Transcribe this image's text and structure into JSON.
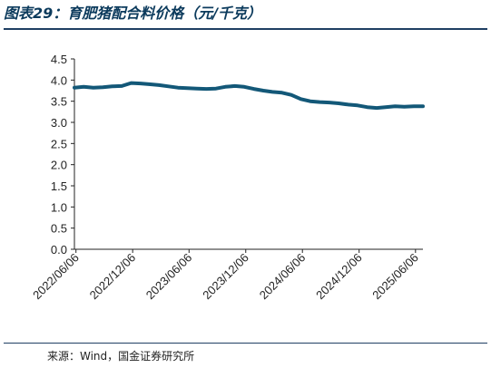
{
  "title": "图表29：育肥猪配合料价格（元/千克）",
  "source": "来源：Wind，国金证券研究所",
  "chart_data": {
    "type": "line",
    "title": "图表29：育肥猪配合料价格（元/千克）",
    "xlabel": "",
    "ylabel": "",
    "ylim": [
      0,
      4.5
    ],
    "yticks": [
      0.0,
      0.5,
      1.0,
      1.5,
      2.0,
      2.5,
      3.0,
      3.5,
      4.0,
      4.5
    ],
    "ytick_labels": [
      "0.0",
      "0.5",
      "1.0",
      "1.5",
      "2.0",
      "2.5",
      "3.0",
      "3.5",
      "4.0",
      "4.5"
    ],
    "xlim": [
      "2022-06-01",
      "2025-06-30"
    ],
    "xticks": [
      "2022-06-06",
      "2022-12-06",
      "2023-06-06",
      "2023-12-06",
      "2024-06-06",
      "2024-12-06",
      "2025-06-06"
    ],
    "xtick_labels": [
      "2022/06/06",
      "2022/12/06",
      "2023/06/06",
      "2023/12/06",
      "2024/06/06",
      "2024/12/06",
      "2025/06/06"
    ],
    "grid": false,
    "legend": "none",
    "line_color": "#135878",
    "series": [
      {
        "name": "",
        "x": [
          "2022-06-01",
          "2022-07-01",
          "2022-08-01",
          "2022-09-01",
          "2022-10-01",
          "2022-11-01",
          "2022-12-01",
          "2023-01-01",
          "2023-02-01",
          "2023-03-01",
          "2023-04-01",
          "2023-05-01",
          "2023-06-01",
          "2023-07-01",
          "2023-08-01",
          "2023-09-01",
          "2023-10-01",
          "2023-11-01",
          "2023-12-01",
          "2024-01-01",
          "2024-02-01",
          "2024-03-01",
          "2024-04-01",
          "2024-05-01",
          "2024-06-01",
          "2024-07-01",
          "2024-08-01",
          "2024-09-01",
          "2024-10-01",
          "2024-11-01",
          "2024-12-01",
          "2025-01-01",
          "2025-02-01",
          "2025-03-01",
          "2025-04-01",
          "2025-05-01",
          "2025-06-01",
          "2025-06-30"
        ],
        "y": [
          3.82,
          3.84,
          3.82,
          3.83,
          3.85,
          3.86,
          3.93,
          3.92,
          3.9,
          3.88,
          3.85,
          3.82,
          3.81,
          3.8,
          3.79,
          3.8,
          3.84,
          3.86,
          3.84,
          3.79,
          3.75,
          3.72,
          3.7,
          3.65,
          3.55,
          3.5,
          3.48,
          3.47,
          3.45,
          3.42,
          3.4,
          3.36,
          3.34,
          3.36,
          3.38,
          3.37,
          3.38,
          3.38
        ]
      }
    ]
  }
}
